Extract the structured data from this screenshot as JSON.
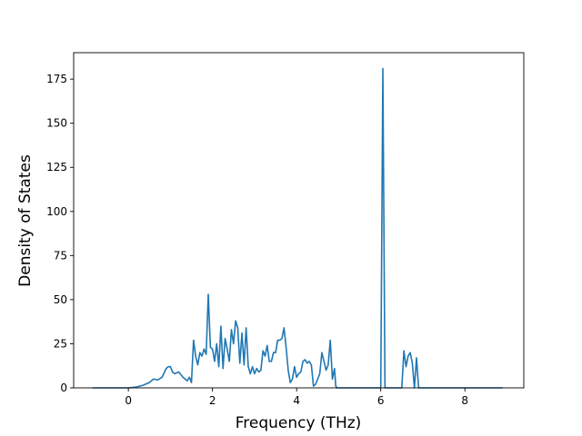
{
  "chart_data": {
    "type": "line",
    "title": "",
    "xlabel": "Frequency (THz)",
    "ylabel": "Density of States",
    "xlim": [
      -1.3,
      9.4
    ],
    "ylim": [
      0,
      190
    ],
    "xticks": [
      0,
      2,
      4,
      6,
      8
    ],
    "yticks": [
      0,
      25,
      50,
      75,
      100,
      125,
      150,
      175
    ],
    "grid": false,
    "legend": "none",
    "colors": {
      "line": "#1f77b4",
      "axes": "#000000",
      "background": "#ffffff"
    },
    "series": [
      {
        "x": [
          -0.85,
          0.0,
          0.2,
          0.35,
          0.5,
          0.6,
          0.7,
          0.8,
          0.9,
          0.95,
          1.0,
          1.05,
          1.1,
          1.2,
          1.3,
          1.4,
          1.45,
          1.5,
          1.55,
          1.6,
          1.65,
          1.7,
          1.75,
          1.8,
          1.85,
          1.9,
          1.95,
          2.0,
          2.05,
          2.1,
          2.15,
          2.2,
          2.25,
          2.3,
          2.35,
          2.4,
          2.45,
          2.5,
          2.55,
          2.6,
          2.65,
          2.7,
          2.75,
          2.8,
          2.85,
          2.9,
          2.95,
          3.0,
          3.05,
          3.1,
          3.15,
          3.2,
          3.25,
          3.3,
          3.35,
          3.4,
          3.45,
          3.5,
          3.55,
          3.6,
          3.65,
          3.7,
          3.75,
          3.8,
          3.85,
          3.9,
          3.95,
          4.0,
          4.05,
          4.1,
          4.15,
          4.2,
          4.25,
          4.3,
          4.35,
          4.4,
          4.45,
          4.5,
          4.55,
          4.6,
          4.65,
          4.7,
          4.75,
          4.8,
          4.85,
          4.9,
          4.93,
          4.96,
          5.2,
          5.6,
          5.98,
          6.0,
          6.05,
          6.1,
          6.15,
          6.4,
          6.5,
          6.55,
          6.6,
          6.65,
          6.7,
          6.75,
          6.8,
          6.85,
          6.9,
          7.2,
          8.0,
          8.9
        ],
        "y": [
          0,
          0,
          0.5,
          1.5,
          3,
          5,
          4.5,
          6,
          11,
          12,
          12,
          9,
          8,
          9,
          6,
          4,
          6,
          3,
          27,
          18,
          13,
          20,
          18,
          22,
          19,
          53,
          23,
          22,
          15,
          25,
          12,
          35,
          11,
          28,
          22,
          15,
          33,
          25,
          38,
          34,
          14,
          31,
          13,
          34,
          12,
          8,
          12,
          8,
          11,
          9,
          10,
          21,
          18,
          24,
          15,
          15,
          20,
          20,
          27,
          27,
          28,
          34,
          23,
          10,
          3,
          5,
          12,
          6,
          8,
          9,
          15,
          16,
          14,
          15,
          13,
          1,
          2,
          5,
          8,
          20,
          15,
          10,
          13,
          27,
          5,
          11,
          1,
          0,
          0,
          0,
          0,
          0,
          181,
          0,
          0,
          0,
          0,
          21,
          12,
          18,
          20,
          14,
          0,
          17,
          0,
          0,
          0,
          0
        ]
      }
    ]
  }
}
